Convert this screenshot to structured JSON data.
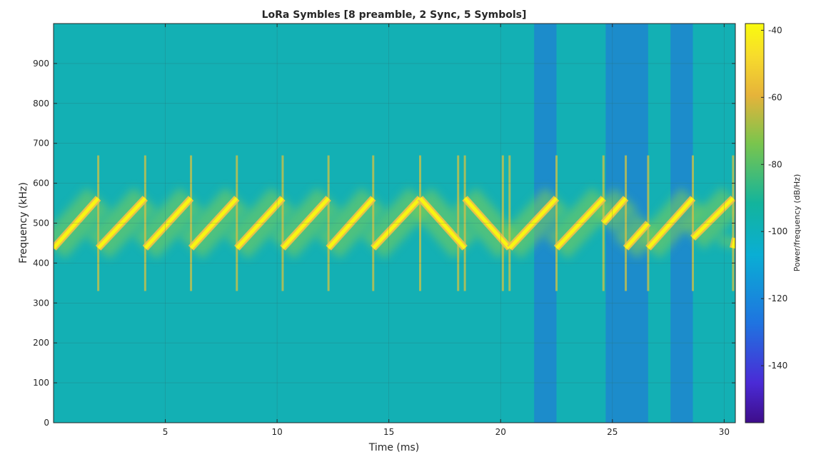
{
  "chart_data": {
    "type": "heatmap",
    "title": "LoRa Symbles [8 preamble, 2 Sync, 5 Symbols]",
    "xlabel": "Time (ms)",
    "ylabel": "Frequency (kHz)",
    "xlim": [
      0,
      30.5
    ],
    "ylim": [
      0,
      1000
    ],
    "xticks": [
      5,
      10,
      15,
      20,
      25,
      30
    ],
    "yticks": [
      0,
      100,
      200,
      300,
      400,
      500,
      600,
      700,
      800,
      900
    ],
    "grid": true,
    "colorbar": {
      "label": "Power/frequency (dB/Hz)",
      "range": [
        -157,
        -38
      ],
      "ticks": [
        -40,
        -60,
        -80,
        -100,
        -120,
        -140
      ]
    },
    "background_level_db": -100,
    "dark_band_level_db": -112,
    "band_low_khz": 437.5,
    "band_high_khz": 562.5,
    "preamble_upchirps": [
      {
        "t_start": 0,
        "t_end": 2.0
      },
      {
        "t_start": 2.0,
        "t_end": 4.1
      },
      {
        "t_start": 4.1,
        "t_end": 6.15
      },
      {
        "t_start": 6.15,
        "t_end": 8.2
      },
      {
        "t_start": 8.2,
        "t_end": 10.25
      },
      {
        "t_start": 10.25,
        "t_end": 12.3
      },
      {
        "t_start": 12.3,
        "t_end": 14.3
      },
      {
        "t_start": 14.3,
        "t_end": 16.4
      }
    ],
    "sync_downchirps": [
      {
        "t_start": 16.4,
        "t_end": 18.4,
        "f_start": 562.5,
        "f_end": 437.5
      },
      {
        "t_start": 18.4,
        "t_end": 20.4,
        "f_start": 562.5,
        "f_end": 437.5
      }
    ],
    "data_symbols": [
      {
        "t_start": 20.4,
        "t_end": 22.5,
        "f_start": 437.5,
        "f_end": 562.5
      },
      {
        "t_start": 22.5,
        "t_end": 24.6,
        "f_start": 437.5,
        "f_end": 562.5
      },
      {
        "t_start": 24.6,
        "t_end": 25.6,
        "f_start": 500,
        "f_end": 562.5
      },
      {
        "t_start": 25.6,
        "t_end": 26.6,
        "f_start": 437.5,
        "f_end": 500
      },
      {
        "t_start": 26.6,
        "t_end": 28.6,
        "f_start": 437.5,
        "f_end": 562.5
      },
      {
        "t_start": 28.6,
        "t_end": 30.4,
        "f_start": 462.5,
        "f_end": 562.5
      },
      {
        "t_start": 30.4,
        "t_end": 30.5,
        "f_start": 437.5,
        "f_end": 462.5
      }
    ],
    "transitions_ms": [
      2.0,
      4.1,
      6.15,
      8.2,
      10.25,
      12.3,
      14.3,
      16.4,
      18.1,
      18.4,
      20.1,
      20.4,
      22.5,
      24.6,
      25.6,
      26.6,
      28.6,
      30.4
    ],
    "dark_bands": [
      {
        "t_start": 21.5,
        "t_end": 22.5
      },
      {
        "t_start": 24.7,
        "t_end": 26.6
      },
      {
        "t_start": 27.6,
        "t_end": 28.6
      }
    ]
  }
}
